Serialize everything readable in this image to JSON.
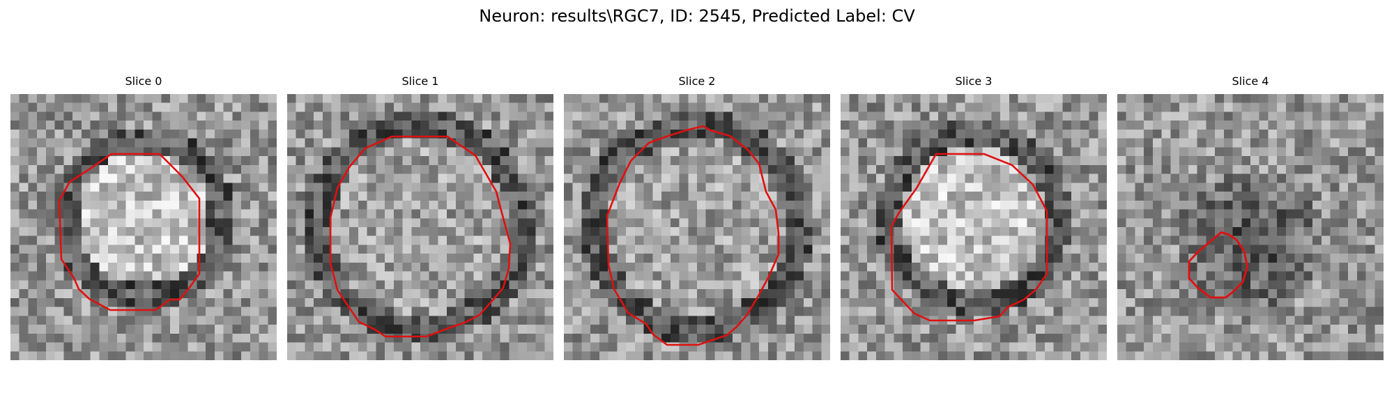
{
  "figure": {
    "title": "Neuron: results\\RGC7, ID: 2545, Predicted Label: CV",
    "contour_color": "#e01010",
    "panels": [
      {
        "title": "Slice 0",
        "center_tone": "light",
        "ring_tone": "dark"
      },
      {
        "title": "Slice 1",
        "center_tone": "mid",
        "ring_tone": "dark"
      },
      {
        "title": "Slice 2",
        "center_tone": "mid",
        "ring_tone": "dark"
      },
      {
        "title": "Slice 3",
        "center_tone": "light",
        "ring_tone": "dark"
      },
      {
        "title": "Slice 4",
        "center_tone": "dark",
        "ring_tone": "none"
      }
    ]
  }
}
